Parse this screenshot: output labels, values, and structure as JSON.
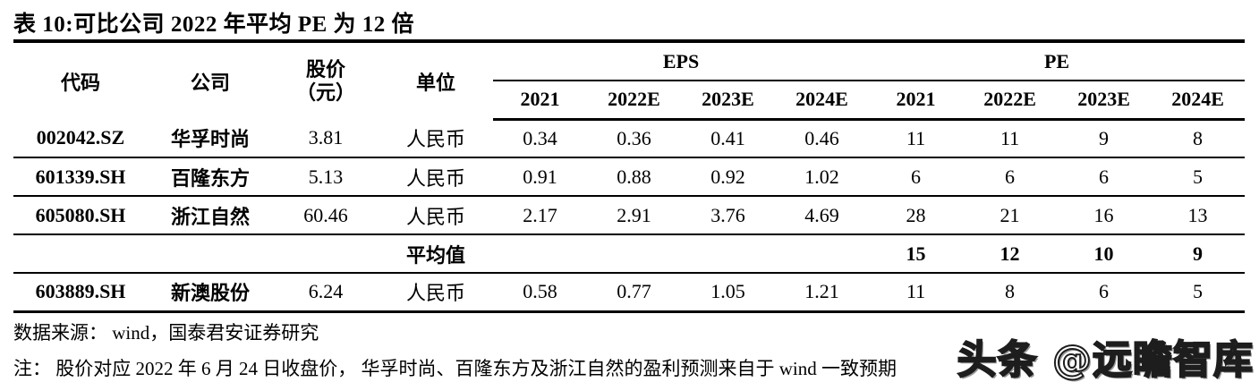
{
  "title": "表 10:可比公司 2022 年平均 PE 为 12 倍",
  "table": {
    "headers": {
      "code": "代码",
      "company": "公司",
      "price_line1": "股价",
      "price_line2": "（元）",
      "unit": "单位",
      "eps_group": "EPS",
      "pe_group": "PE",
      "years": [
        "2021",
        "2022E",
        "2023E",
        "2024E"
      ]
    },
    "rows": [
      {
        "code": "002042.SZ",
        "company": "华孚时尚",
        "price": "3.81",
        "unit": "人民币",
        "eps": [
          "0.34",
          "0.36",
          "0.41",
          "0.46"
        ],
        "pe": [
          "11",
          "11",
          "9",
          "8"
        ]
      },
      {
        "code": "601339.SH",
        "company": "百隆东方",
        "price": "5.13",
        "unit": "人民币",
        "eps": [
          "0.91",
          "0.88",
          "0.92",
          "1.02"
        ],
        "pe": [
          "6",
          "6",
          "6",
          "5"
        ]
      },
      {
        "code": "605080.SH",
        "company": "浙江自然",
        "price": "60.46",
        "unit": "人民币",
        "eps": [
          "2.17",
          "2.91",
          "3.76",
          "4.69"
        ],
        "pe": [
          "28",
          "21",
          "16",
          "13"
        ]
      }
    ],
    "average_row": {
      "label": "平均值",
      "pe": [
        "15",
        "12",
        "10",
        "9"
      ]
    },
    "extra_row": {
      "code": "603889.SH",
      "company": "新澳股份",
      "price": "6.24",
      "unit": "人民币",
      "eps": [
        "0.58",
        "0.77",
        "1.05",
        "1.21"
      ],
      "pe": [
        "11",
        "8",
        "6",
        "5"
      ]
    }
  },
  "footer": {
    "source": "数据来源： wind，国泰君安证券研究",
    "note": "注： 股价对应 2022 年 6 月 24 日收盘价， 华孚时尚、百隆东方及浙江自然的盈利预测来自于 wind 一致预期"
  },
  "watermark": "头条 @远瞻智库",
  "colors": {
    "text": "#000000",
    "background": "#ffffff",
    "rule": "#000000"
  }
}
